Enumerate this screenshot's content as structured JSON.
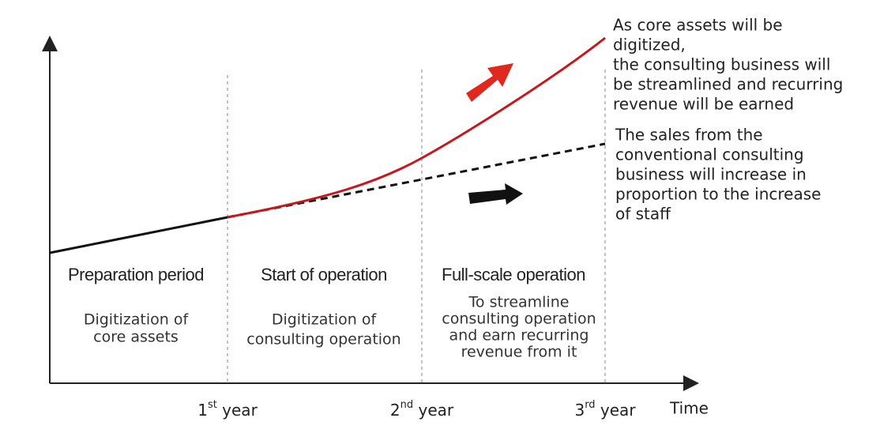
{
  "axis": {
    "x_label": "Time"
  },
  "years": [
    {
      "number": "1",
      "suffix": "st",
      "word": "year"
    },
    {
      "number": "2",
      "suffix": "nd",
      "word": "year"
    },
    {
      "number": "3",
      "suffix": "rd",
      "word": "year"
    }
  ],
  "phases": [
    {
      "title": "Preparation period",
      "description": [
        "Digitization of",
        "core assets"
      ]
    },
    {
      "title": "Start of operation",
      "description": [
        "Digitization of",
        "consulting operation"
      ]
    },
    {
      "title": "Full-scale operation",
      "description": [
        "To streamline",
        "consulting operation",
        "and earn recurring",
        "revenue from it"
      ]
    }
  ],
  "annotations": {
    "digitized": [
      "As core assets will be",
      "digitized,",
      "the consulting business will",
      "be streamlined and recurring",
      "revenue will be earned"
    ],
    "conventional": [
      "The sales from the",
      "conventional consulting",
      "business will increase in",
      "proportion to the increase",
      "of staff"
    ]
  }
}
